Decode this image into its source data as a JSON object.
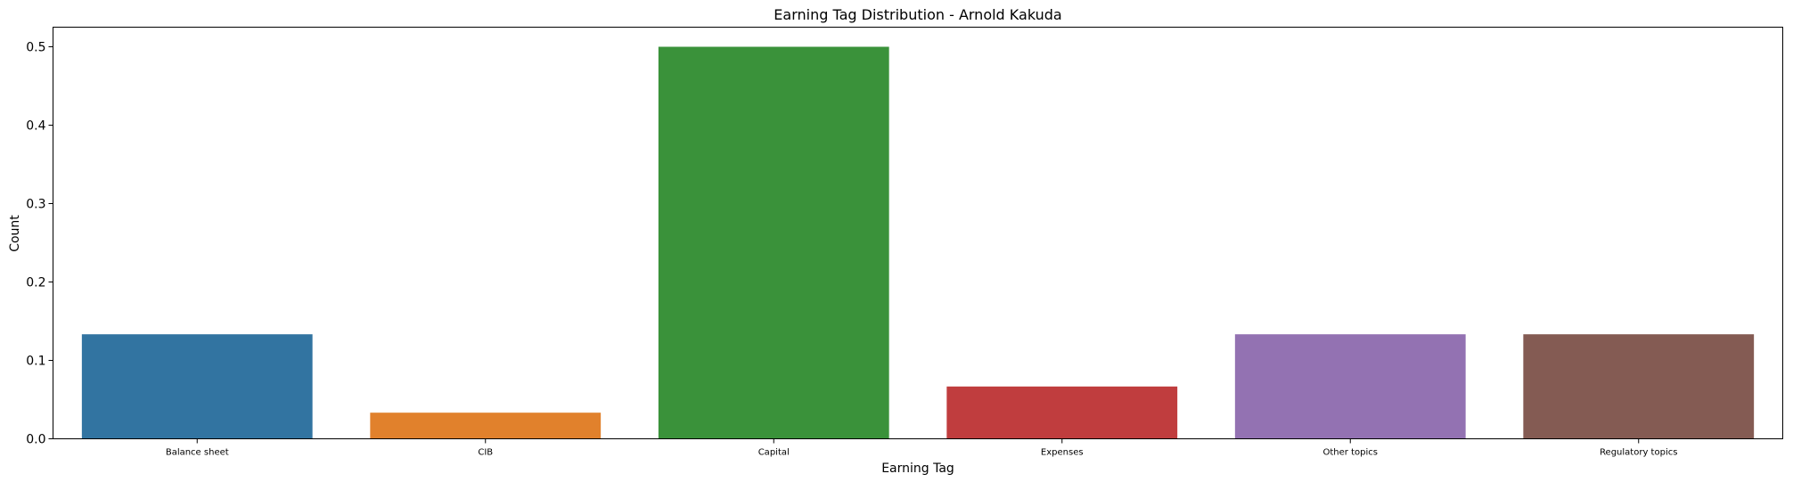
{
  "chart_data": {
    "type": "bar",
    "title": "Earning Tag Distribution - Arnold Kakuda",
    "xlabel": "Earning Tag",
    "ylabel": "Count",
    "categories": [
      "Balance sheet",
      "CIB",
      "Capital",
      "Expenses",
      "Other topics",
      "Regulatory topics"
    ],
    "values": [
      0.1333,
      0.0333,
      0.5,
      0.0667,
      0.1333,
      0.1333
    ],
    "colors": [
      "#3274a1",
      "#e1812c",
      "#3a923a",
      "#c03d3e",
      "#9372b2",
      "#845b53"
    ],
    "ylim": [
      0,
      0.525
    ],
    "yticks": [
      "0.0",
      "0.1",
      "0.2",
      "0.3",
      "0.4",
      "0.5"
    ],
    "grid": false
  }
}
